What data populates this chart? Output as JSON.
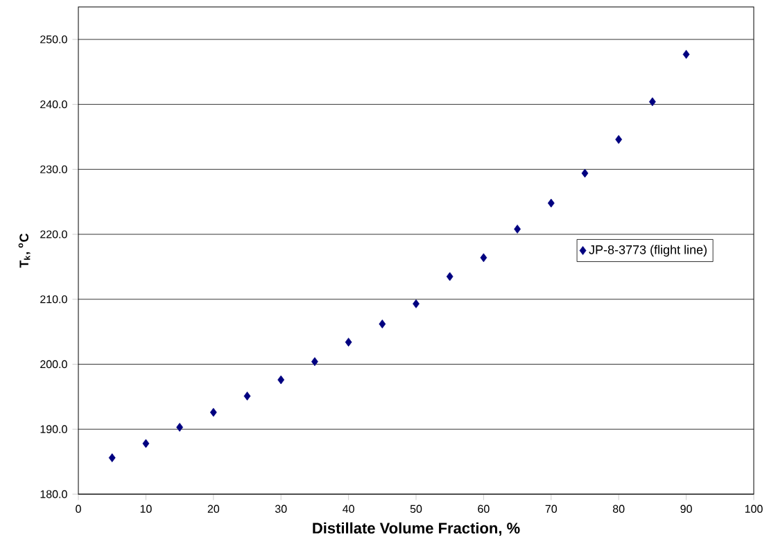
{
  "chart_data": {
    "type": "scatter",
    "xlabel": "Distillate Volume Fraction, %",
    "ylabel": "T$_{k}$, $^{o}$C",
    "x": [
      5,
      10,
      15,
      20,
      25,
      30,
      35,
      40,
      45,
      50,
      55,
      60,
      65,
      70,
      75,
      80,
      85,
      90
    ],
    "series": [
      {
        "name": "JP-8-3773 (flight line)",
        "color": "#000080",
        "values": [
          185.6,
          187.8,
          190.3,
          192.6,
          195.1,
          197.6,
          200.4,
          203.4,
          206.2,
          209.3,
          213.5,
          216.4,
          220.8,
          224.8,
          229.4,
          234.6,
          240.4,
          247.7
        ]
      }
    ],
    "xlim": [
      0,
      100
    ],
    "xticks": [
      0,
      10,
      20,
      30,
      40,
      50,
      60,
      70,
      80,
      90,
      100
    ],
    "ylim": [
      180,
      255
    ],
    "yticks": [
      {
        "value": 180,
        "label": "180.0"
      },
      {
        "value": 190,
        "label": "190.0"
      },
      {
        "value": 200,
        "label": "200.0"
      },
      {
        "value": 210,
        "label": "210.0"
      },
      {
        "value": 220,
        "label": "220.0"
      },
      {
        "value": 230,
        "label": "230.0"
      },
      {
        "value": 240,
        "label": "240.0"
      },
      {
        "value": 250,
        "label": "250.0"
      }
    ],
    "grid": "y",
    "legend": "right",
    "marker": "diamond"
  }
}
